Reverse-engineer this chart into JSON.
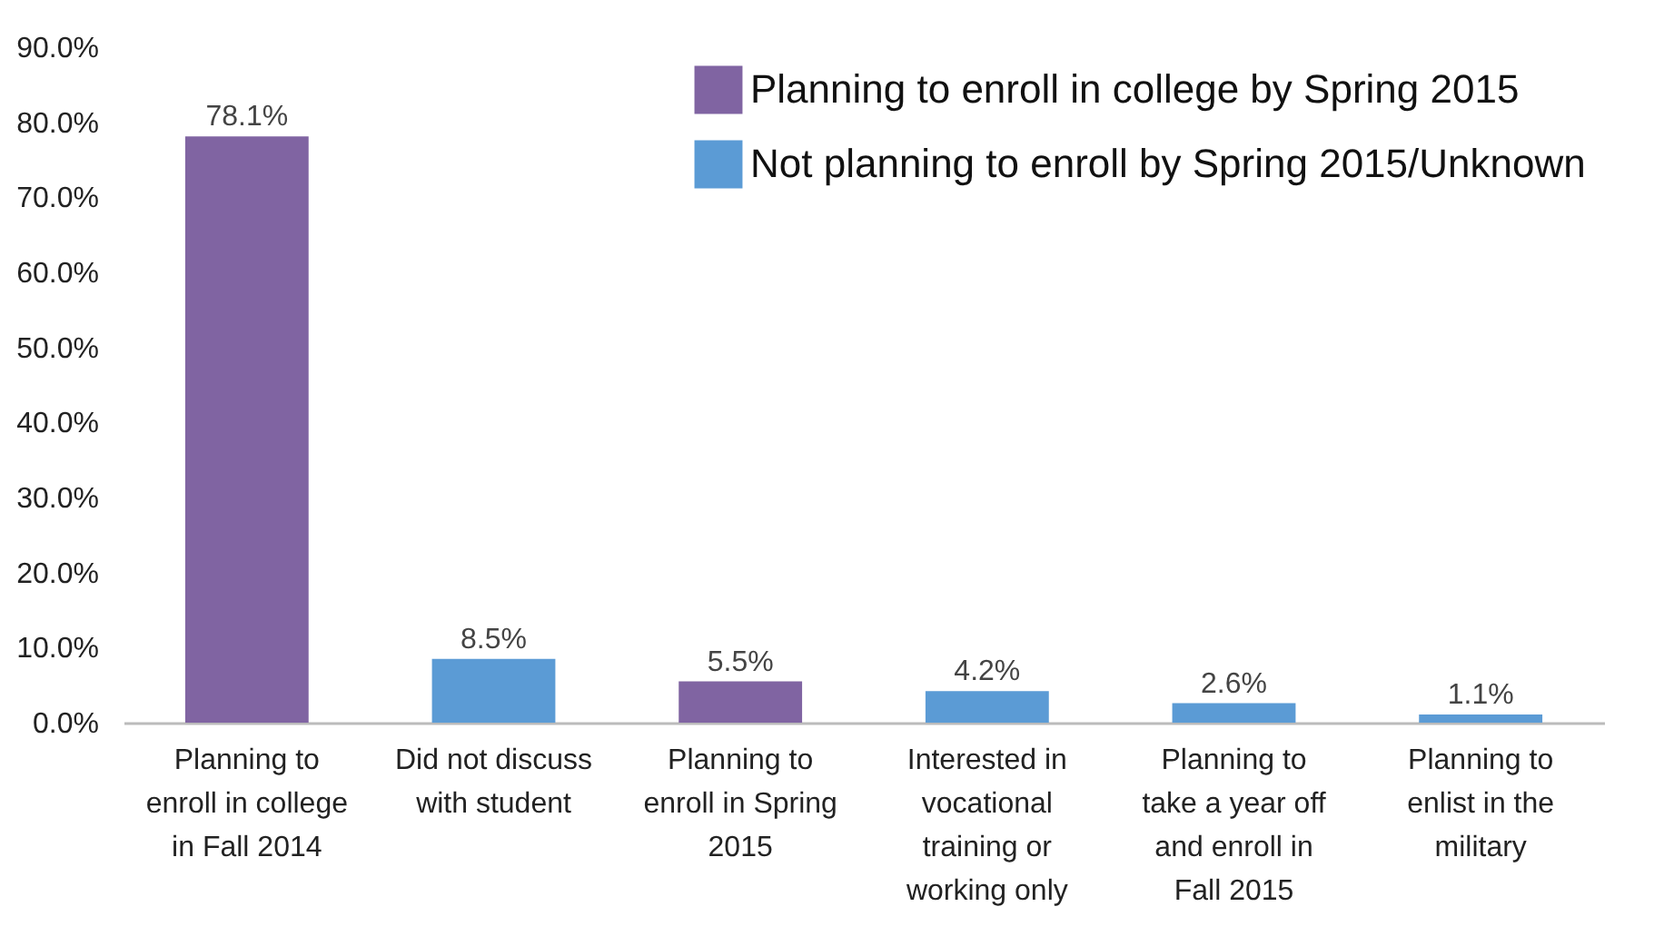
{
  "chart_data": {
    "type": "bar",
    "categories": [
      "Planning to enroll in college in Fall 2014",
      "Did not discuss with student",
      "Planning to enroll in Spring 2015",
      "Interested in vocational training or working only",
      "Planning to take a year off and enroll in Fall 2015",
      "Planning to enlist in the military"
    ],
    "series": [
      {
        "name": "Planning to enroll in college by Spring 2015",
        "color": "#8064a2",
        "values": [
          78.1,
          null,
          5.5,
          null,
          null,
          null
        ],
        "value_labels": [
          "78.1%",
          null,
          "5.5%",
          null,
          null,
          null
        ]
      },
      {
        "name": "Not planning to enroll by Spring 2015/Unknown",
        "color": "#5b9bd5",
        "values": [
          null,
          8.5,
          null,
          4.2,
          2.6,
          1.1
        ],
        "value_labels": [
          null,
          "8.5%",
          null,
          "4.2%",
          "2.6%",
          "1.1%"
        ]
      }
    ],
    "ylim": [
      0,
      90
    ],
    "yticks": [
      {
        "value": 0,
        "label": "0.0%"
      },
      {
        "value": 10,
        "label": "10.0%"
      },
      {
        "value": 20,
        "label": "20.0%"
      },
      {
        "value": 30,
        "label": "30.0%"
      },
      {
        "value": 40,
        "label": "40.0%"
      },
      {
        "value": 50,
        "label": "50.0%"
      },
      {
        "value": 60,
        "label": "60.0%"
      },
      {
        "value": 70,
        "label": "70.0%"
      },
      {
        "value": 80,
        "label": "80.0%"
      },
      {
        "value": 90,
        "label": "90.0%"
      }
    ],
    "grid": false,
    "legend": "top right"
  }
}
